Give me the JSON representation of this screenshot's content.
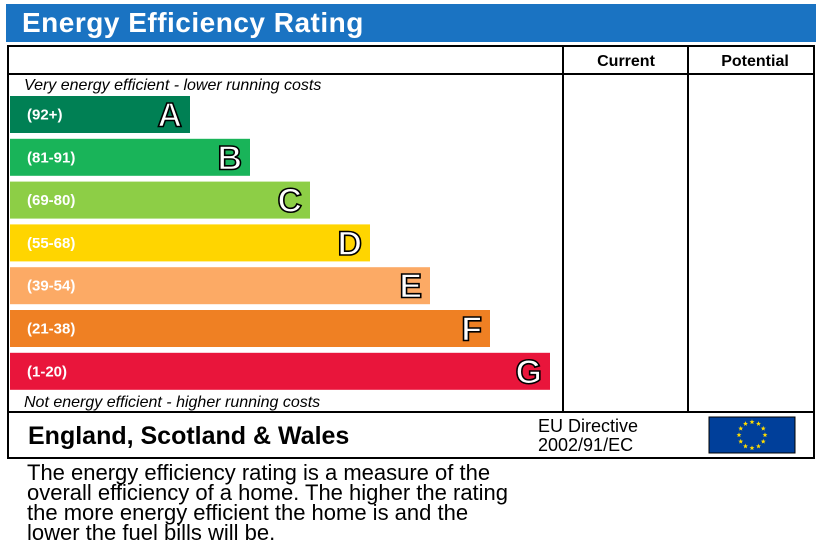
{
  "title": "Energy Efficiency Rating",
  "headers": {
    "current": "Current",
    "potential": "Potential"
  },
  "notes": {
    "top": "Very energy efficient - lower running costs",
    "bottom": "Not energy efficient - higher running costs"
  },
  "chart_data": {
    "type": "bar",
    "categories": [
      "A",
      "B",
      "C",
      "D",
      "E",
      "F",
      "G"
    ],
    "ranges": [
      "(92+)",
      "(81-91)",
      "(69-80)",
      "(55-68)",
      "(39-54)",
      "(21-38)",
      "(1-20)"
    ],
    "colors": [
      "#008054",
      "#19b459",
      "#8dce46",
      "#ffd500",
      "#fcaa65",
      "#ef8023",
      "#e9153b"
    ],
    "current": null,
    "potential": null
  },
  "footer": {
    "region": "England, Scotland & Wales",
    "directive_line1": "EU Directive",
    "directive_line2": "2002/91/EC"
  },
  "caption": "The energy efficiency rating is a measure of the\noverall efficiency of a home. The higher the rating\nthe more energy efficient the home is and the\nlower the fuel bills will be."
}
